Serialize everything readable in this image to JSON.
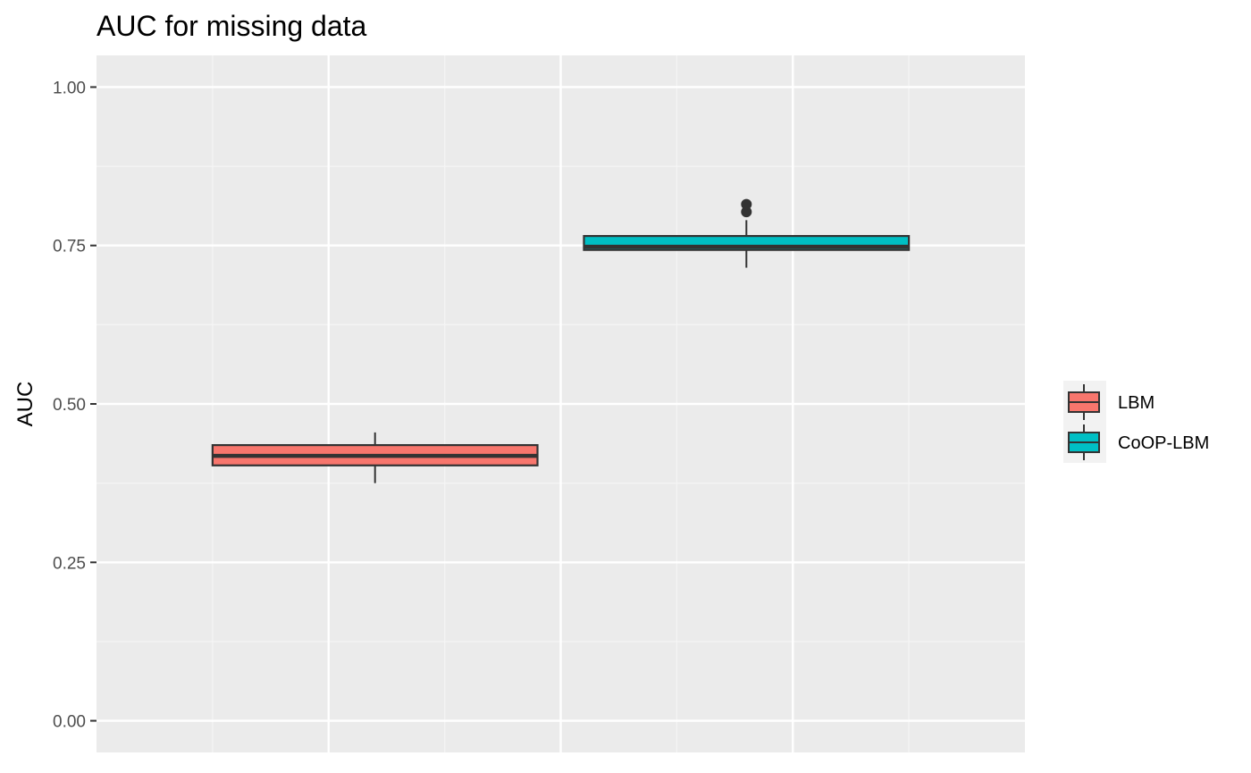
{
  "chart_data": {
    "type": "boxplot",
    "title": "AUC for missing data",
    "xlabel": "",
    "ylabel": "AUC",
    "ylim": [
      -0.05,
      1.05
    ],
    "yticks": [
      0.0,
      0.25,
      0.5,
      0.75,
      1.0
    ],
    "ytick_labels": [
      "0.00",
      "0.25",
      "0.50",
      "0.75",
      "1.00"
    ],
    "grid": true,
    "legend_position": "right",
    "series": [
      {
        "name": "LBM",
        "color": "#F8766D",
        "x_range": [
          -1.5,
          -0.1
        ],
        "whisker_x": -0.8,
        "whisker_low": 0.375,
        "q1": 0.403,
        "median": 0.418,
        "q3": 0.435,
        "whisker_high": 0.455,
        "outliers": []
      },
      {
        "name": "CoOP-LBM",
        "color": "#00BFC4",
        "x_range": [
          0.1,
          1.5
        ],
        "whisker_x": 0.8,
        "whisker_low": 0.715,
        "q1": 0.743,
        "median": 0.748,
        "q3": 0.765,
        "whisker_high": 0.79,
        "outliers": [
          0.803,
          0.815
        ]
      }
    ]
  }
}
